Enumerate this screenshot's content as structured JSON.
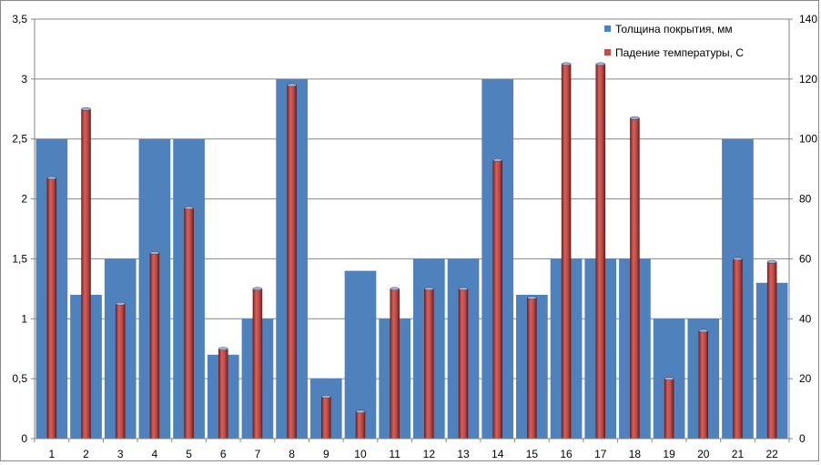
{
  "chart_data": {
    "type": "bar",
    "categories": [
      "1",
      "2",
      "3",
      "4",
      "5",
      "6",
      "7",
      "8",
      "9",
      "10",
      "11",
      "12",
      "13",
      "14",
      "15",
      "16",
      "17",
      "18",
      "19",
      "20",
      "21",
      "22"
    ],
    "series": [
      {
        "name": "Толщина покрытия, мм",
        "axis": "left",
        "color": "#4F81BD",
        "values": [
          2.5,
          1.2,
          1.5,
          2.5,
          2.5,
          0.7,
          1.0,
          3.0,
          0.5,
          1.4,
          1.0,
          1.5,
          1.5,
          3.0,
          1.2,
          1.5,
          1.5,
          1.5,
          1.0,
          1.0,
          2.5,
          1.3
        ]
      },
      {
        "name": "Падение температуры, С",
        "axis": "right",
        "color": "#C0504D",
        "values": [
          87,
          110,
          45,
          62,
          77,
          30,
          50,
          118,
          14,
          9,
          50,
          50,
          50,
          93,
          47,
          125,
          125,
          107,
          20,
          36,
          60,
          59
        ]
      }
    ],
    "left_axis": {
      "ylim": [
        0,
        3.5
      ],
      "ticks": [
        "0",
        "0,5",
        "1",
        "1,5",
        "2",
        "2,5",
        "3",
        "3,5"
      ]
    },
    "right_axis": {
      "ylim": [
        0,
        140
      ],
      "ticks": [
        "0",
        "20",
        "40",
        "60",
        "80",
        "100",
        "120",
        "140"
      ]
    },
    "grid": true,
    "legend_position": "top-right"
  }
}
